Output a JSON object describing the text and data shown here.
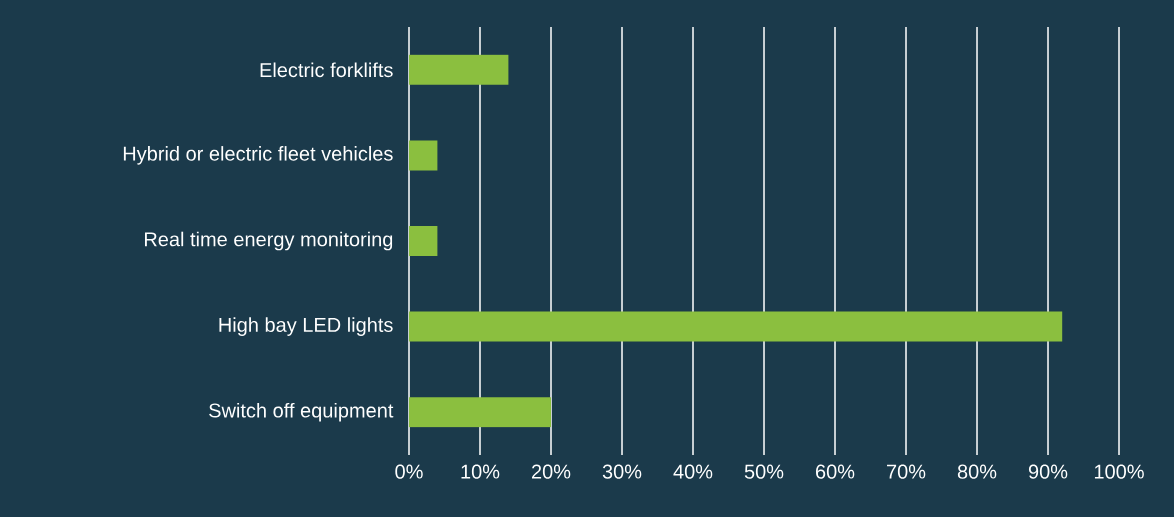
{
  "chart_data": {
    "type": "bar",
    "orientation": "horizontal",
    "categories": [
      "Electric forklifts",
      "Hybrid or electric fleet vehicles",
      "Real time energy monitoring",
      "High bay LED lights",
      "Switch off equipment"
    ],
    "values": [
      14,
      4,
      4,
      92,
      20
    ],
    "color": "#8bbf3f",
    "xlim": [
      0,
      100
    ],
    "xticks": [
      {
        "value": 0,
        "label": "0%"
      },
      {
        "value": 10,
        "label": "10%"
      },
      {
        "value": 20,
        "label": "20%"
      },
      {
        "value": 30,
        "label": "30%"
      },
      {
        "value": 40,
        "label": "40%"
      },
      {
        "value": 50,
        "label": "50%"
      },
      {
        "value": 60,
        "label": "60%"
      },
      {
        "value": 70,
        "label": "70%"
      },
      {
        "value": 80,
        "label": "80%"
      },
      {
        "value": 90,
        "label": "90%"
      },
      {
        "value": 100,
        "label": "100%"
      }
    ],
    "grid": "x"
  }
}
